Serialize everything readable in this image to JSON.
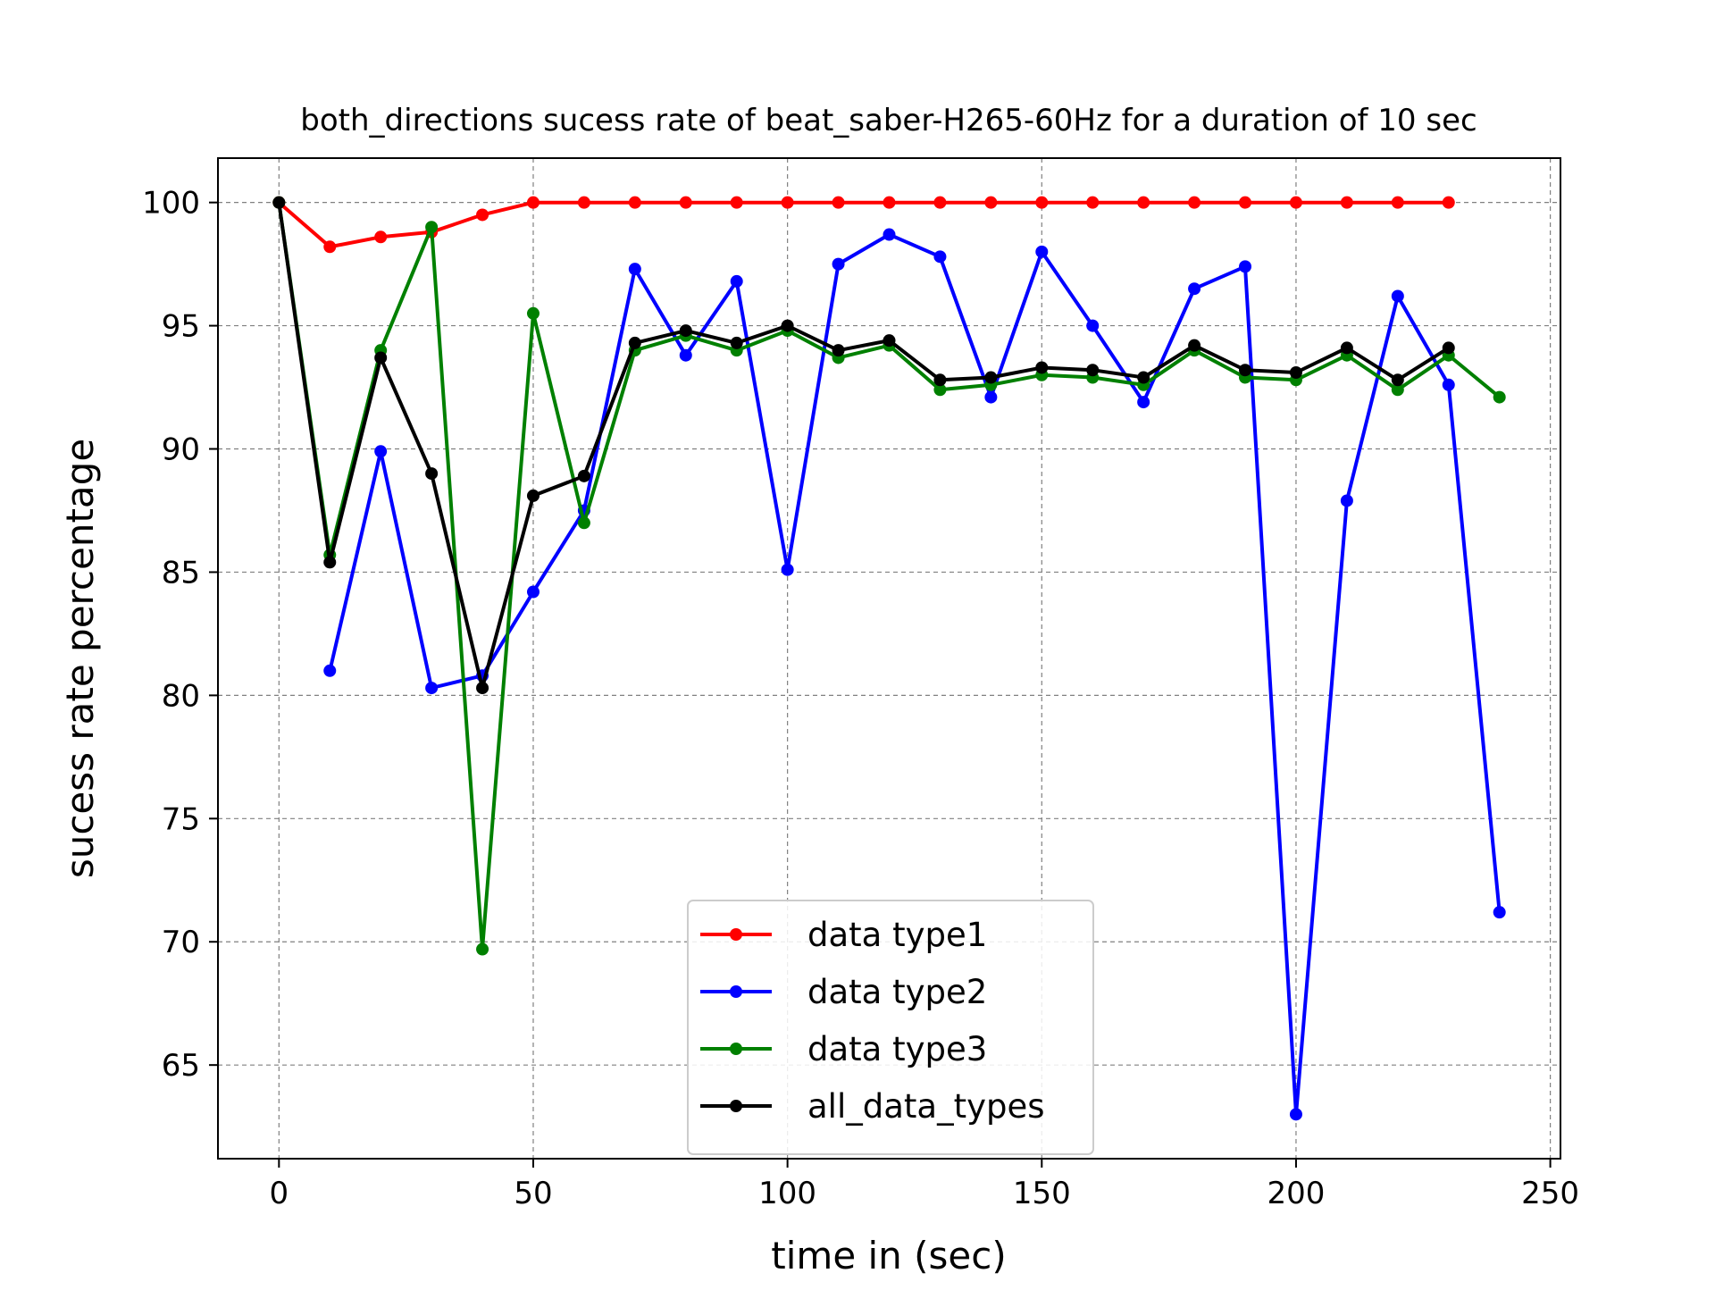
{
  "chart_data": {
    "type": "line",
    "title": "both_directions sucess rate of beat_saber-H265-60Hz for a duration of 10 sec",
    "xlabel": "time in (sec)",
    "ylabel": "sucess rate percentage",
    "xlim": [
      -12,
      252
    ],
    "ylim": [
      61.2,
      101.8
    ],
    "xticks": [
      0,
      50,
      100,
      150,
      200,
      250
    ],
    "yticks": [
      65,
      70,
      75,
      80,
      85,
      90,
      95,
      100
    ],
    "grid": true,
    "legend_position": "bottom-center",
    "series": [
      {
        "name": "data type1",
        "color": "#ff0000",
        "x": [
          0,
          10,
          20,
          30,
          40,
          50,
          60,
          70,
          80,
          90,
          100,
          110,
          120,
          130,
          140,
          150,
          160,
          170,
          180,
          190,
          200,
          210,
          220,
          230
        ],
        "y": [
          100,
          98.2,
          98.6,
          98.8,
          99.5,
          100,
          100,
          100,
          100,
          100,
          100,
          100,
          100,
          100,
          100,
          100,
          100,
          100,
          100,
          100,
          100,
          100,
          100,
          100
        ]
      },
      {
        "name": "data type2",
        "color": "#0000ff",
        "x": [
          10,
          20,
          30,
          40,
          50,
          60,
          70,
          80,
          90,
          100,
          110,
          120,
          130,
          140,
          150,
          160,
          170,
          180,
          190,
          200,
          210,
          220,
          230,
          240
        ],
        "y": [
          81.0,
          89.9,
          80.3,
          80.8,
          84.2,
          87.5,
          97.3,
          93.8,
          96.8,
          85.1,
          97.5,
          98.7,
          97.8,
          92.1,
          98.0,
          95.0,
          91.9,
          96.5,
          97.4,
          63.0,
          87.9,
          96.2,
          92.6,
          71.2
        ]
      },
      {
        "name": "data type3",
        "color": "#008000",
        "x": [
          0,
          10,
          20,
          30,
          40,
          50,
          60,
          70,
          80,
          90,
          100,
          110,
          120,
          130,
          140,
          150,
          160,
          170,
          180,
          190,
          200,
          210,
          220,
          230,
          240
        ],
        "y": [
          100,
          85.7,
          94.0,
          99.0,
          69.7,
          95.5,
          87.0,
          94.0,
          94.6,
          94.0,
          94.8,
          93.7,
          94.2,
          92.4,
          92.6,
          93.0,
          92.9,
          92.6,
          94.0,
          92.9,
          92.8,
          93.8,
          92.4,
          93.8,
          92.1
        ]
      },
      {
        "name": "all_data_types",
        "color": "#000000",
        "x": [
          0,
          10,
          20,
          30,
          40,
          50,
          60,
          70,
          80,
          90,
          100,
          110,
          120,
          130,
          140,
          150,
          160,
          170,
          180,
          190,
          200,
          210,
          220,
          230
        ],
        "y": [
          100,
          85.4,
          93.7,
          89.0,
          80.3,
          88.1,
          88.9,
          94.3,
          94.8,
          94.3,
          95.0,
          94.0,
          94.4,
          92.8,
          92.9,
          93.3,
          93.2,
          92.9,
          94.2,
          93.2,
          93.1,
          94.1,
          92.8,
          94.1
        ]
      }
    ]
  }
}
